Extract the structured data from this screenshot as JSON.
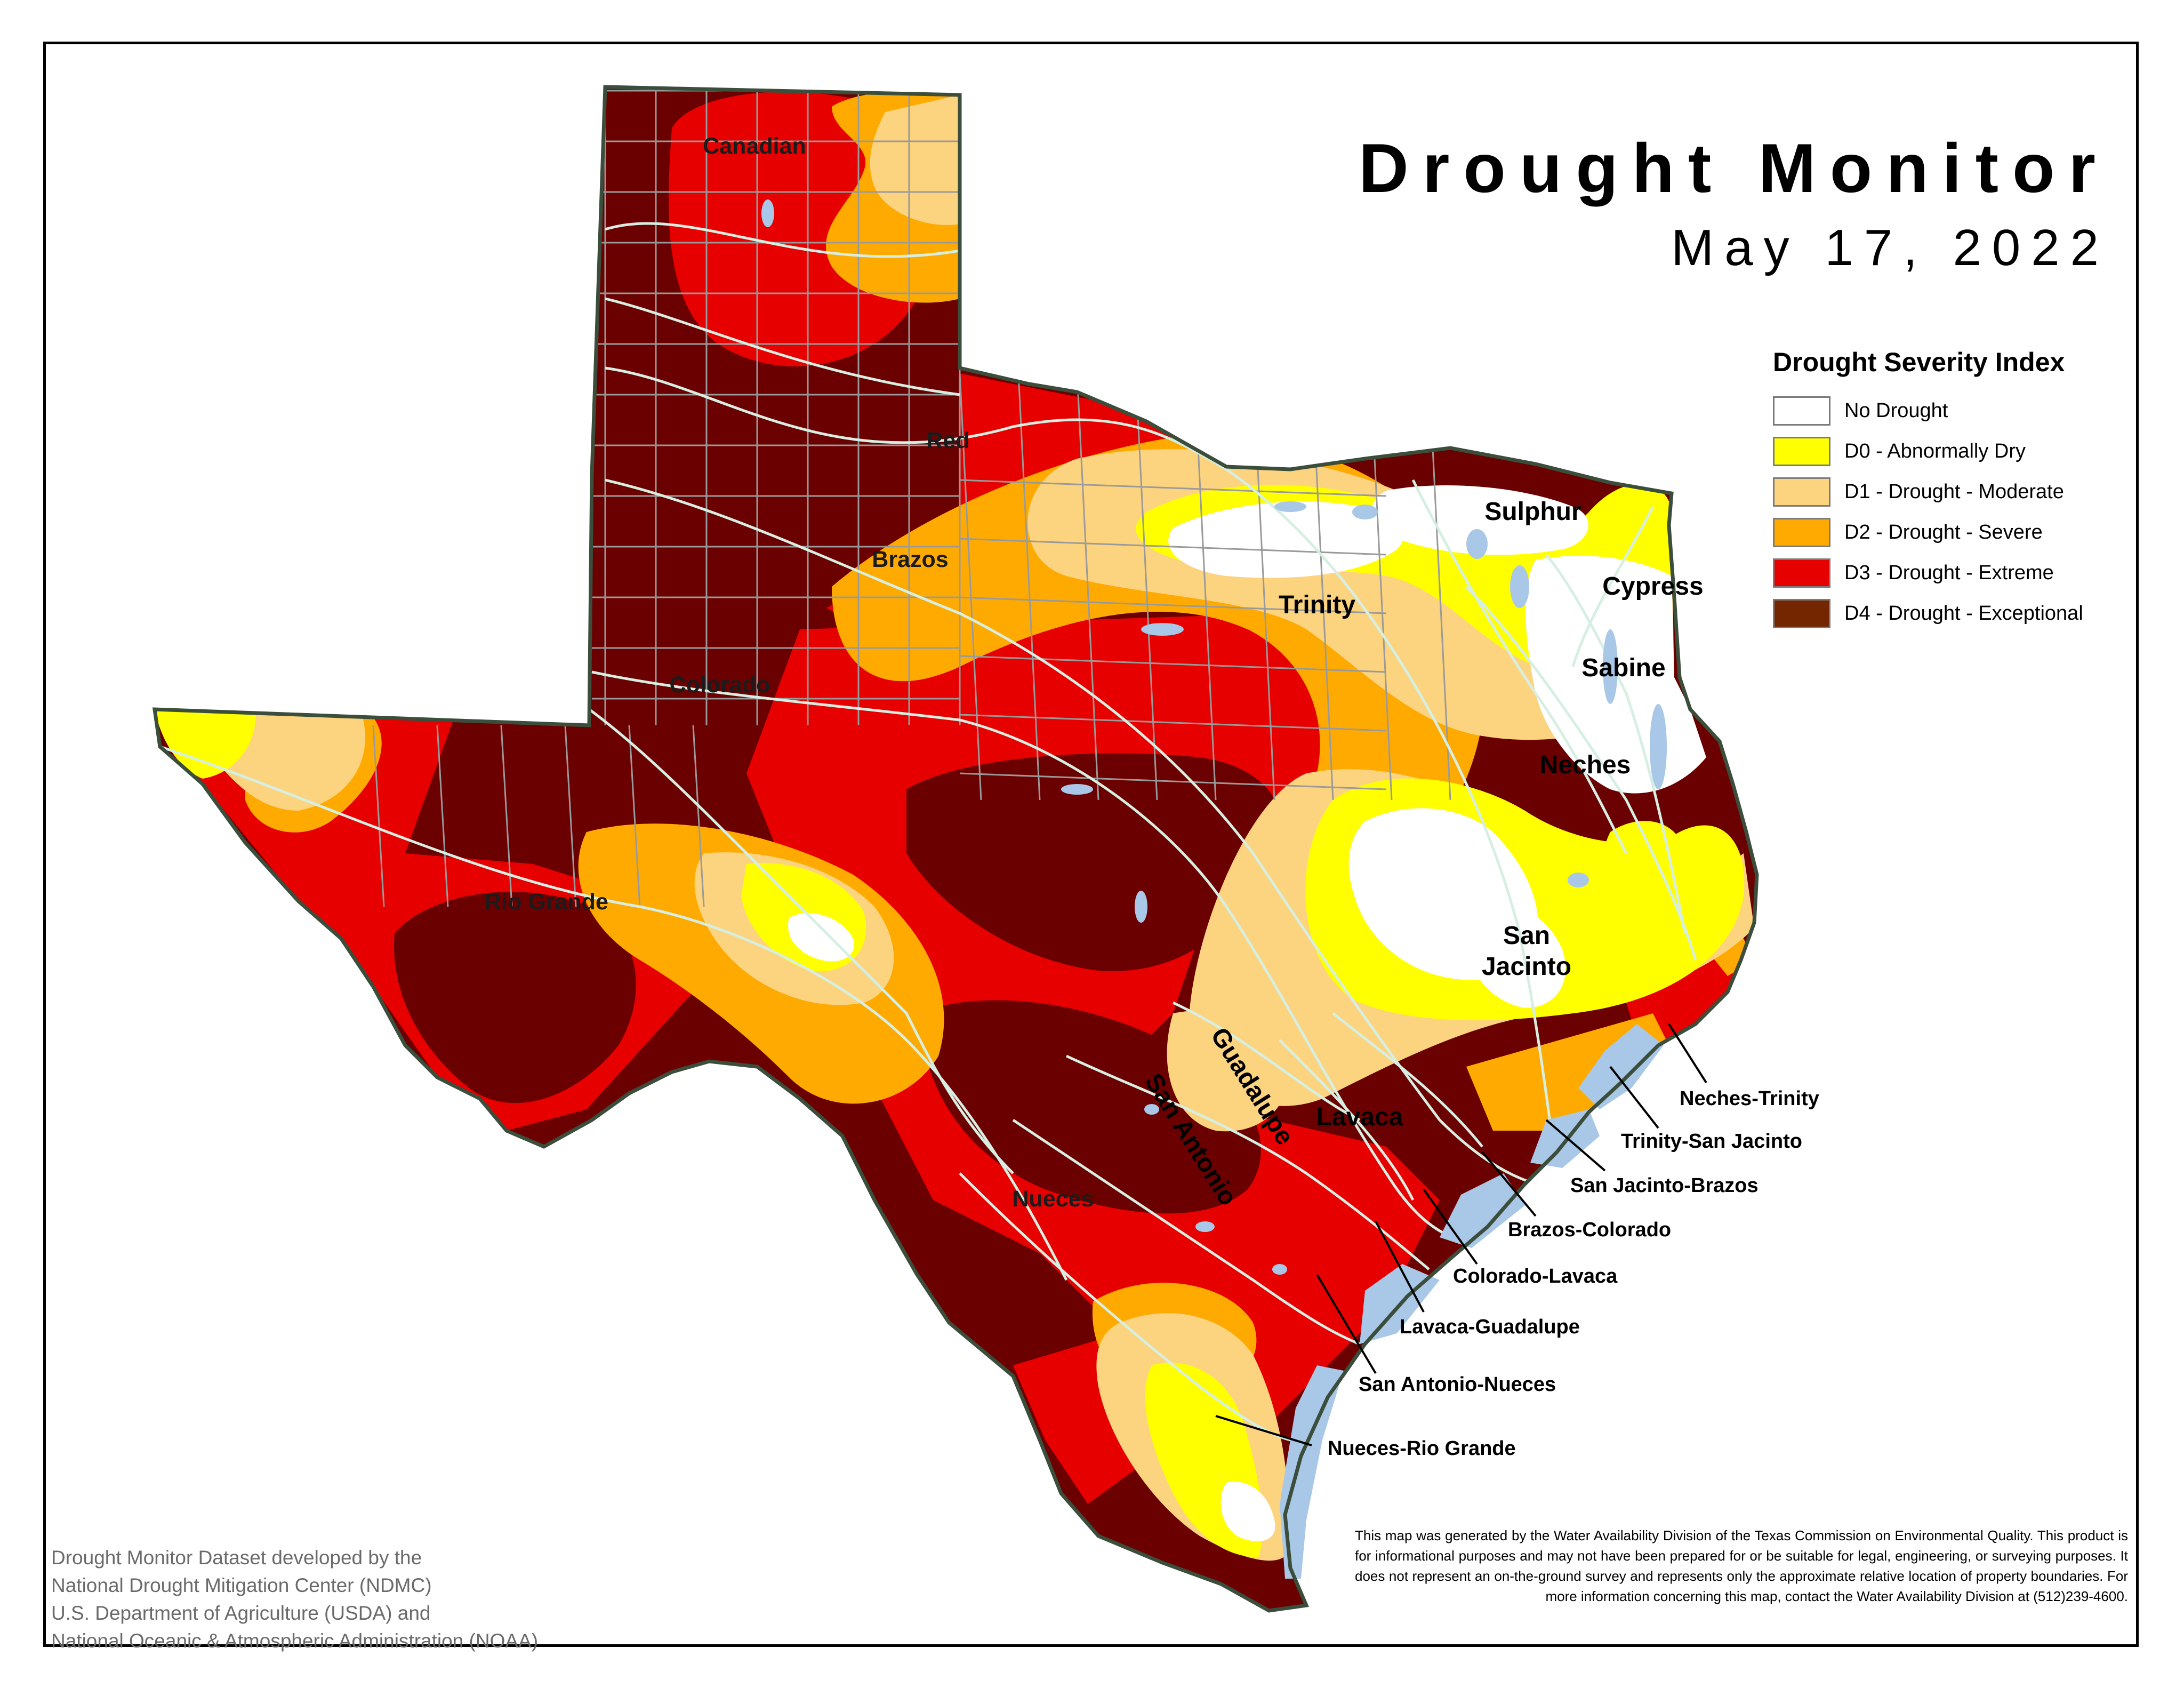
{
  "title": "Drought Monitor",
  "date": "May 17, 2022",
  "legend": {
    "title": "Drought Severity Index",
    "items": [
      {
        "label": "No Drought",
        "color": "#ffffff"
      },
      {
        "label": "D0 - Abnormally Dry",
        "color": "#ffff00"
      },
      {
        "label": "D1 - Drought - Moderate",
        "color": "#fcd37f"
      },
      {
        "label": "D2 - Drought - Severe",
        "color": "#ffaa00"
      },
      {
        "label": "D3 - Drought - Extreme",
        "color": "#e60000"
      },
      {
        "label": "D4 - Drought - Exceptional",
        "color": "#732600"
      }
    ]
  },
  "map_colors": {
    "d4_fill": "#6b0000",
    "water": "#a9c7e6",
    "river_line": "#d6efe2",
    "county_line": "#9a9a9a",
    "state_border": "#3b4d3b"
  },
  "basins": {
    "canadian": "Canadian",
    "red": "Red",
    "brazos": "Brazos",
    "colorado": "Colorado",
    "rio_grande": "Rio Grande",
    "trinity": "Trinity",
    "sulphur": "Sulphur",
    "cypress": "Cypress",
    "sabine": "Sabine",
    "neches": "Neches",
    "san_jacinto_1": "San",
    "san_jacinto_2": "Jacinto",
    "guadalupe": "Guadalupe",
    "san_antonio": "San Antonio",
    "lavaca": "Lavaca",
    "nueces": "Nueces"
  },
  "coastal_basins": {
    "neches_trinity": "Neches-Trinity",
    "trinity_san_jacinto": "Trinity-San Jacinto",
    "san_jacinto_brazos": "San Jacinto-Brazos",
    "brazos_colorado": "Brazos-Colorado",
    "colorado_lavaca": "Colorado-Lavaca",
    "lavaca_guadalupe": "Lavaca-Guadalupe",
    "san_antonio_nueces": "San Antonio-Nueces",
    "nueces_rio_grande": "Nueces-Rio Grande"
  },
  "credit": {
    "line1": "Drought Monitor Dataset developed by the",
    "line2": "National Drought Mitigation Center (NDMC)",
    "line3": "U.S. Department of Agriculture (USDA) and",
    "line4": "National Oceanic & Atmospheric Administration (NOAA)"
  },
  "disclaimer": "This map was generated by the Water Availability Division of the Texas Commission on Environmental Quality. This product is for informational purposes and may not have been prepared for or be suitable for legal, engineering, or surveying purposes. It does not represent an on-the-ground survey and represents only the approximate relative location of property boundaries. For more information concerning this map, contact the Water Availability Division at (512)239-4600."
}
